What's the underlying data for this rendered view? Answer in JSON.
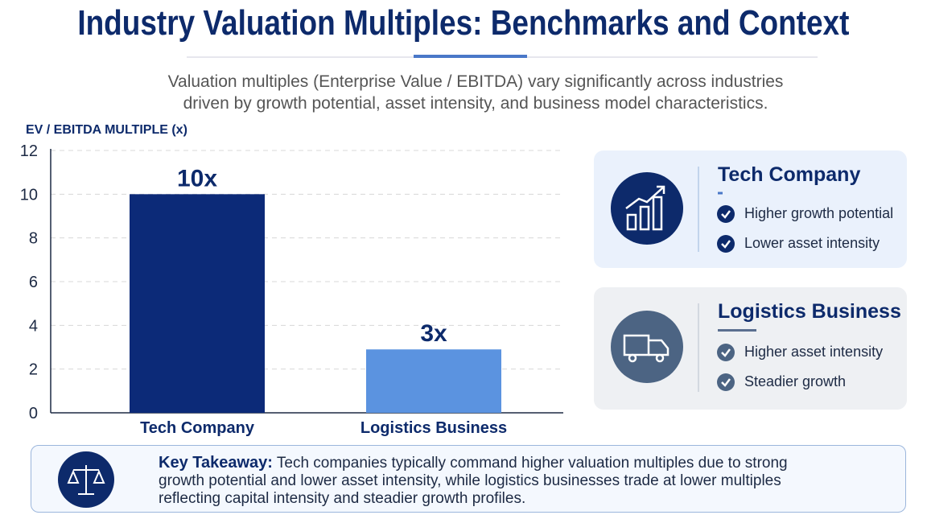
{
  "header": {
    "title": "Industry Valuation Multiples: Benchmarks and Context",
    "subtitle": "Valuation multiples (Enterprise Value / EBITDA) vary significantly across industries driven by growth potential, asset intensity, and business model characteristics."
  },
  "chart_data": {
    "type": "bar",
    "y_label": "EV / EBITDA MULTIPLE (x)",
    "categories": [
      "Tech Company",
      "Logistics Business"
    ],
    "values": [
      10,
      2.9
    ],
    "value_labels": [
      "10x",
      "3x"
    ],
    "colors": [
      "#0c2a78",
      "#5b93e0"
    ],
    "ylim": [
      0,
      12
    ],
    "yticks": [
      0,
      2,
      4,
      6,
      8,
      10,
      12
    ],
    "grid": true
  },
  "cards": [
    {
      "title": "Tech Company",
      "points": [
        "Higher growth potential",
        "Lower asset intensity"
      ]
    },
    {
      "title": "Logistics Business",
      "points": [
        "Higher asset intensity",
        "Steadier growth"
      ]
    }
  ],
  "takeaway": {
    "label": "Key Takeaway:",
    "text": "Tech companies typically command higher valuation multiples due to strong growth potential and lower asset intensity, while logistics businesses trade at lower multiples reflecting capital intensity and steadier growth profiles."
  }
}
